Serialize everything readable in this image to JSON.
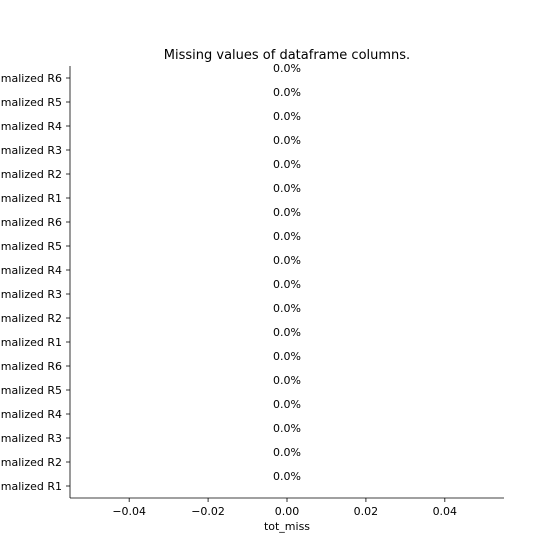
{
  "chart_data": {
    "type": "bar",
    "orientation": "horizontal",
    "title": "Missing values of dataframe columns.",
    "xlabel": "tot_miss",
    "ylabel": "",
    "xlim": [
      -0.055,
      0.055
    ],
    "x_ticks": [
      -0.04,
      -0.02,
      0.0,
      0.02,
      0.04
    ],
    "x_tick_labels": [
      "−0.04",
      "−0.02",
      "0.00",
      "0.02",
      "0.04"
    ],
    "categories": [
      "malized R1",
      "malized R2",
      "malized R3",
      "malized R4",
      "malized R5",
      "malized R6",
      "malized R1",
      "malized R2",
      "malized R3",
      "malized R4",
      "malized R5",
      "malized R6",
      "malized R1",
      "malized R2",
      "malized R3",
      "malized R4",
      "malized R5",
      "malized R6"
    ],
    "values": [
      0,
      0,
      0,
      0,
      0,
      0,
      0,
      0,
      0,
      0,
      0,
      0,
      0,
      0,
      0,
      0,
      0,
      0
    ],
    "data_labels": [
      "0.0%",
      "0.0%",
      "0.0%",
      "0.0%",
      "0.0%",
      "0.0%",
      "0.0%",
      "0.0%",
      "0.0%",
      "0.0%",
      "0.0%",
      "0.0%",
      "0.0%",
      "0.0%",
      "0.0%",
      "0.0%",
      "0.0%",
      "0.0%"
    ],
    "grid": false,
    "legend": "none",
    "spines": [
      "left",
      "bottom"
    ]
  }
}
